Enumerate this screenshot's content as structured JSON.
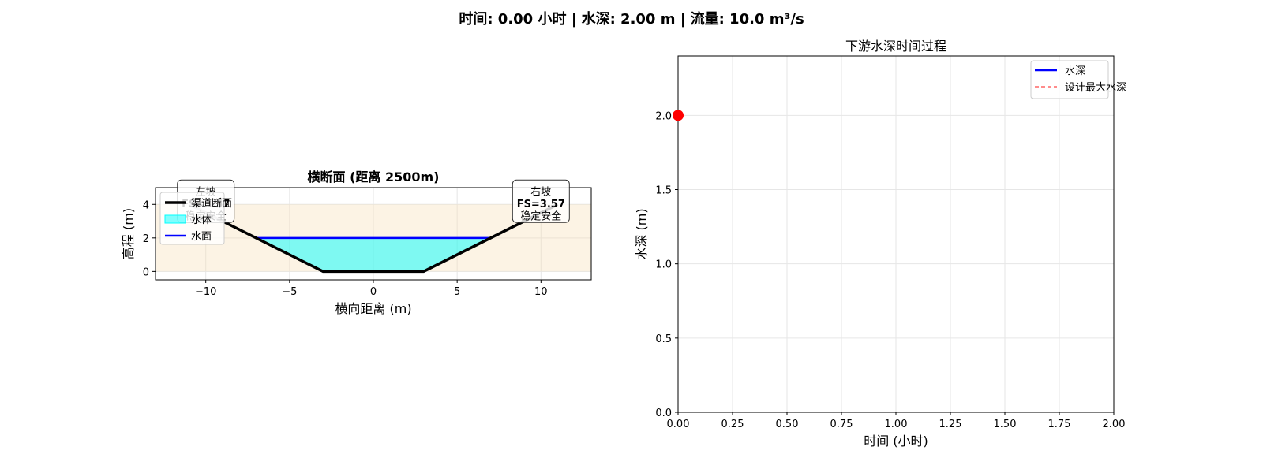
{
  "figure_title": "时间: 0.00 小时 | 水深: 2.00 m | 流量: 10.0 m³/s",
  "chart_data": [
    {
      "type": "area",
      "title": "横断面 (距离 2500m)",
      "xlabel": "横向距离 (m)",
      "ylabel": "高程 (m)",
      "xlim": [
        -13,
        13
      ],
      "ylim": [
        -0.5,
        5.0
      ],
      "xticks": [
        -10,
        -5,
        0,
        5,
        10
      ],
      "yticks": [
        0,
        2,
        4
      ],
      "grid": true,
      "legend_position": "upper-left",
      "legend": [
        {
          "label": "渠道断面",
          "color": "#000000",
          "kind": "line"
        },
        {
          "label": "水体",
          "color": "#00ffff",
          "kind": "patch"
        },
        {
          "label": "水面",
          "color": "#0000ff",
          "kind": "line"
        }
      ],
      "bank_fill": {
        "y_bottom": 0,
        "y_top": 4,
        "color": "#f5deb3"
      },
      "channel_profile": {
        "x": [
          -11,
          -3,
          3,
          11
        ],
        "y": [
          4,
          0,
          0,
          4
        ],
        "color": "#000000"
      },
      "water": {
        "level": 2.0,
        "left_x": -7,
        "right_x": 7,
        "color": "#00ffff",
        "line_color": "#0000ff"
      },
      "slope_labels": [
        {
          "side": "left",
          "x": -10,
          "y": 4,
          "lines": [
            "左坡",
            "FS=3.57",
            "稳定安全"
          ]
        },
        {
          "side": "right",
          "x": 10,
          "y": 4,
          "lines": [
            "右坡",
            "FS=3.57",
            "稳定安全"
          ]
        }
      ],
      "label_color": "#008000"
    },
    {
      "type": "line",
      "title": "下游水深时间过程",
      "xlabel": "时间 (小时)",
      "ylabel": "水深 (m)",
      "xlim": [
        0,
        2.0
      ],
      "ylim": [
        0,
        2.4
      ],
      "xticks": [
        "0.00",
        "0.25",
        "0.50",
        "0.75",
        "1.00",
        "1.25",
        "1.50",
        "1.75",
        "2.00"
      ],
      "yticks": [
        "0.0",
        "0.5",
        "1.0",
        "1.5",
        "2.0"
      ],
      "grid": true,
      "legend_position": "upper-right",
      "legend": [
        {
          "label": "水深",
          "color": "#0000ff",
          "style": "solid"
        },
        {
          "label": "设计最大水深",
          "color": "#ff6666",
          "style": "dashed"
        }
      ],
      "series": [
        {
          "name": "水深",
          "x": [
            0.0
          ],
          "y": [
            2.0
          ],
          "color": "#0000ff"
        }
      ],
      "current_point": {
        "x": 0.0,
        "y": 2.0,
        "color": "#ff0000"
      }
    }
  ]
}
